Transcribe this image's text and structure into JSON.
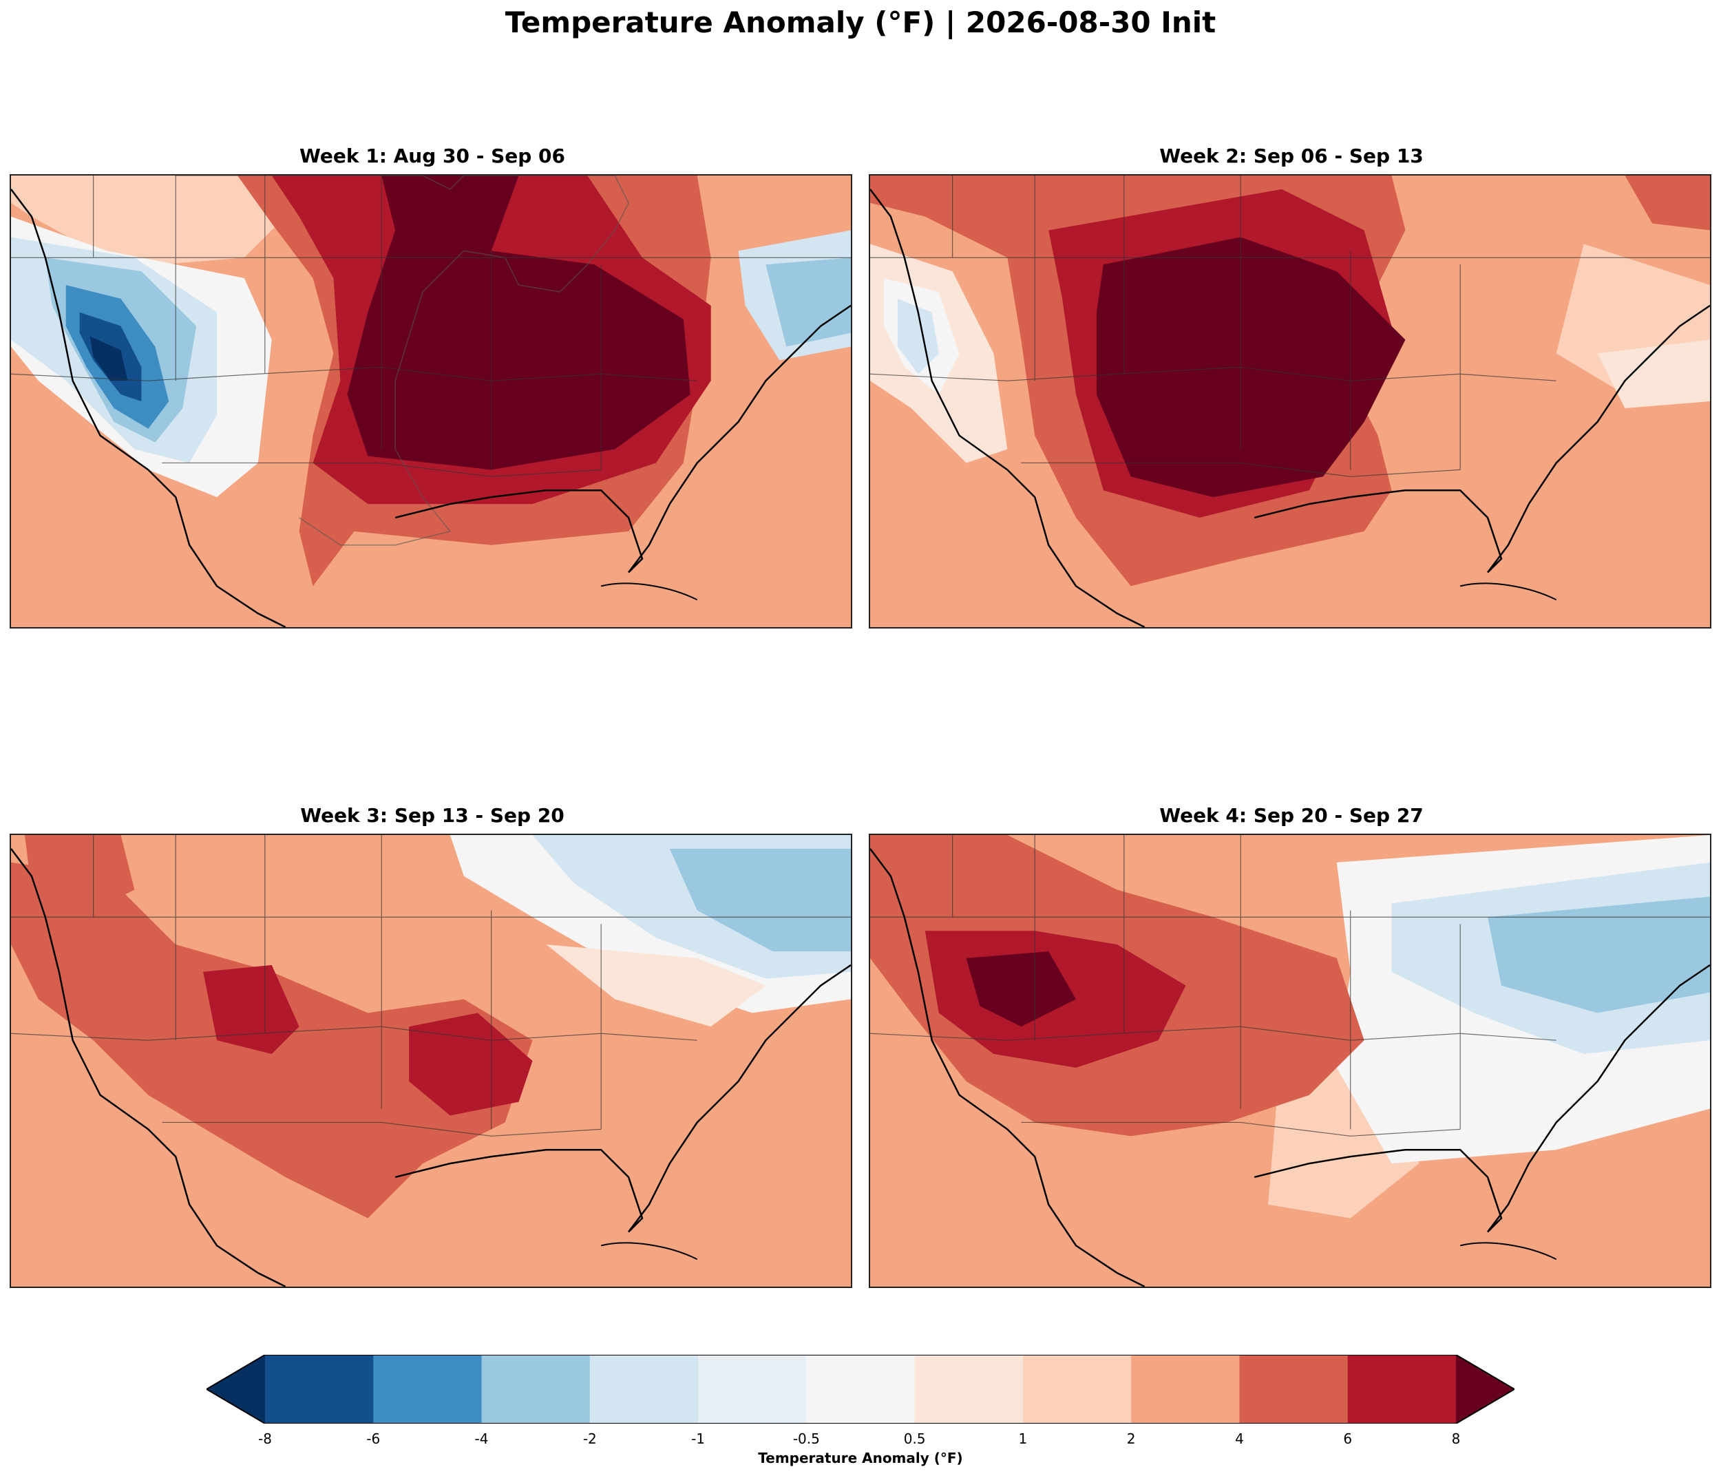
{
  "title": "Temperature Anomaly (°F) | 2026-08-30 Init",
  "panels": [
    {
      "title": "Week 1: Aug 30 - Sep 06"
    },
    {
      "title": "Week 2: Sep 06 - Sep 13"
    },
    {
      "title": "Week 3: Sep 13 - Sep 20"
    },
    {
      "title": "Week 4: Sep 20 - Sep 27"
    }
  ],
  "colorbar": {
    "label": "Temperature Anomaly (°F)",
    "ticks": [
      "-8",
      "-6",
      "-4",
      "-2",
      "-1",
      "-0.5",
      "0.5",
      "1",
      "2",
      "4",
      "6",
      "8"
    ],
    "colors": [
      "#053061",
      "#134f8d",
      "#3d8dc3",
      "#9ac8e0",
      "#d2e5f0",
      "#e7eff4",
      "#f5f5f5",
      "#fbe5d8",
      "#fcd1b9",
      "#f4a582",
      "#d6604d",
      "#b2182b",
      "#67001f"
    ]
  }
}
